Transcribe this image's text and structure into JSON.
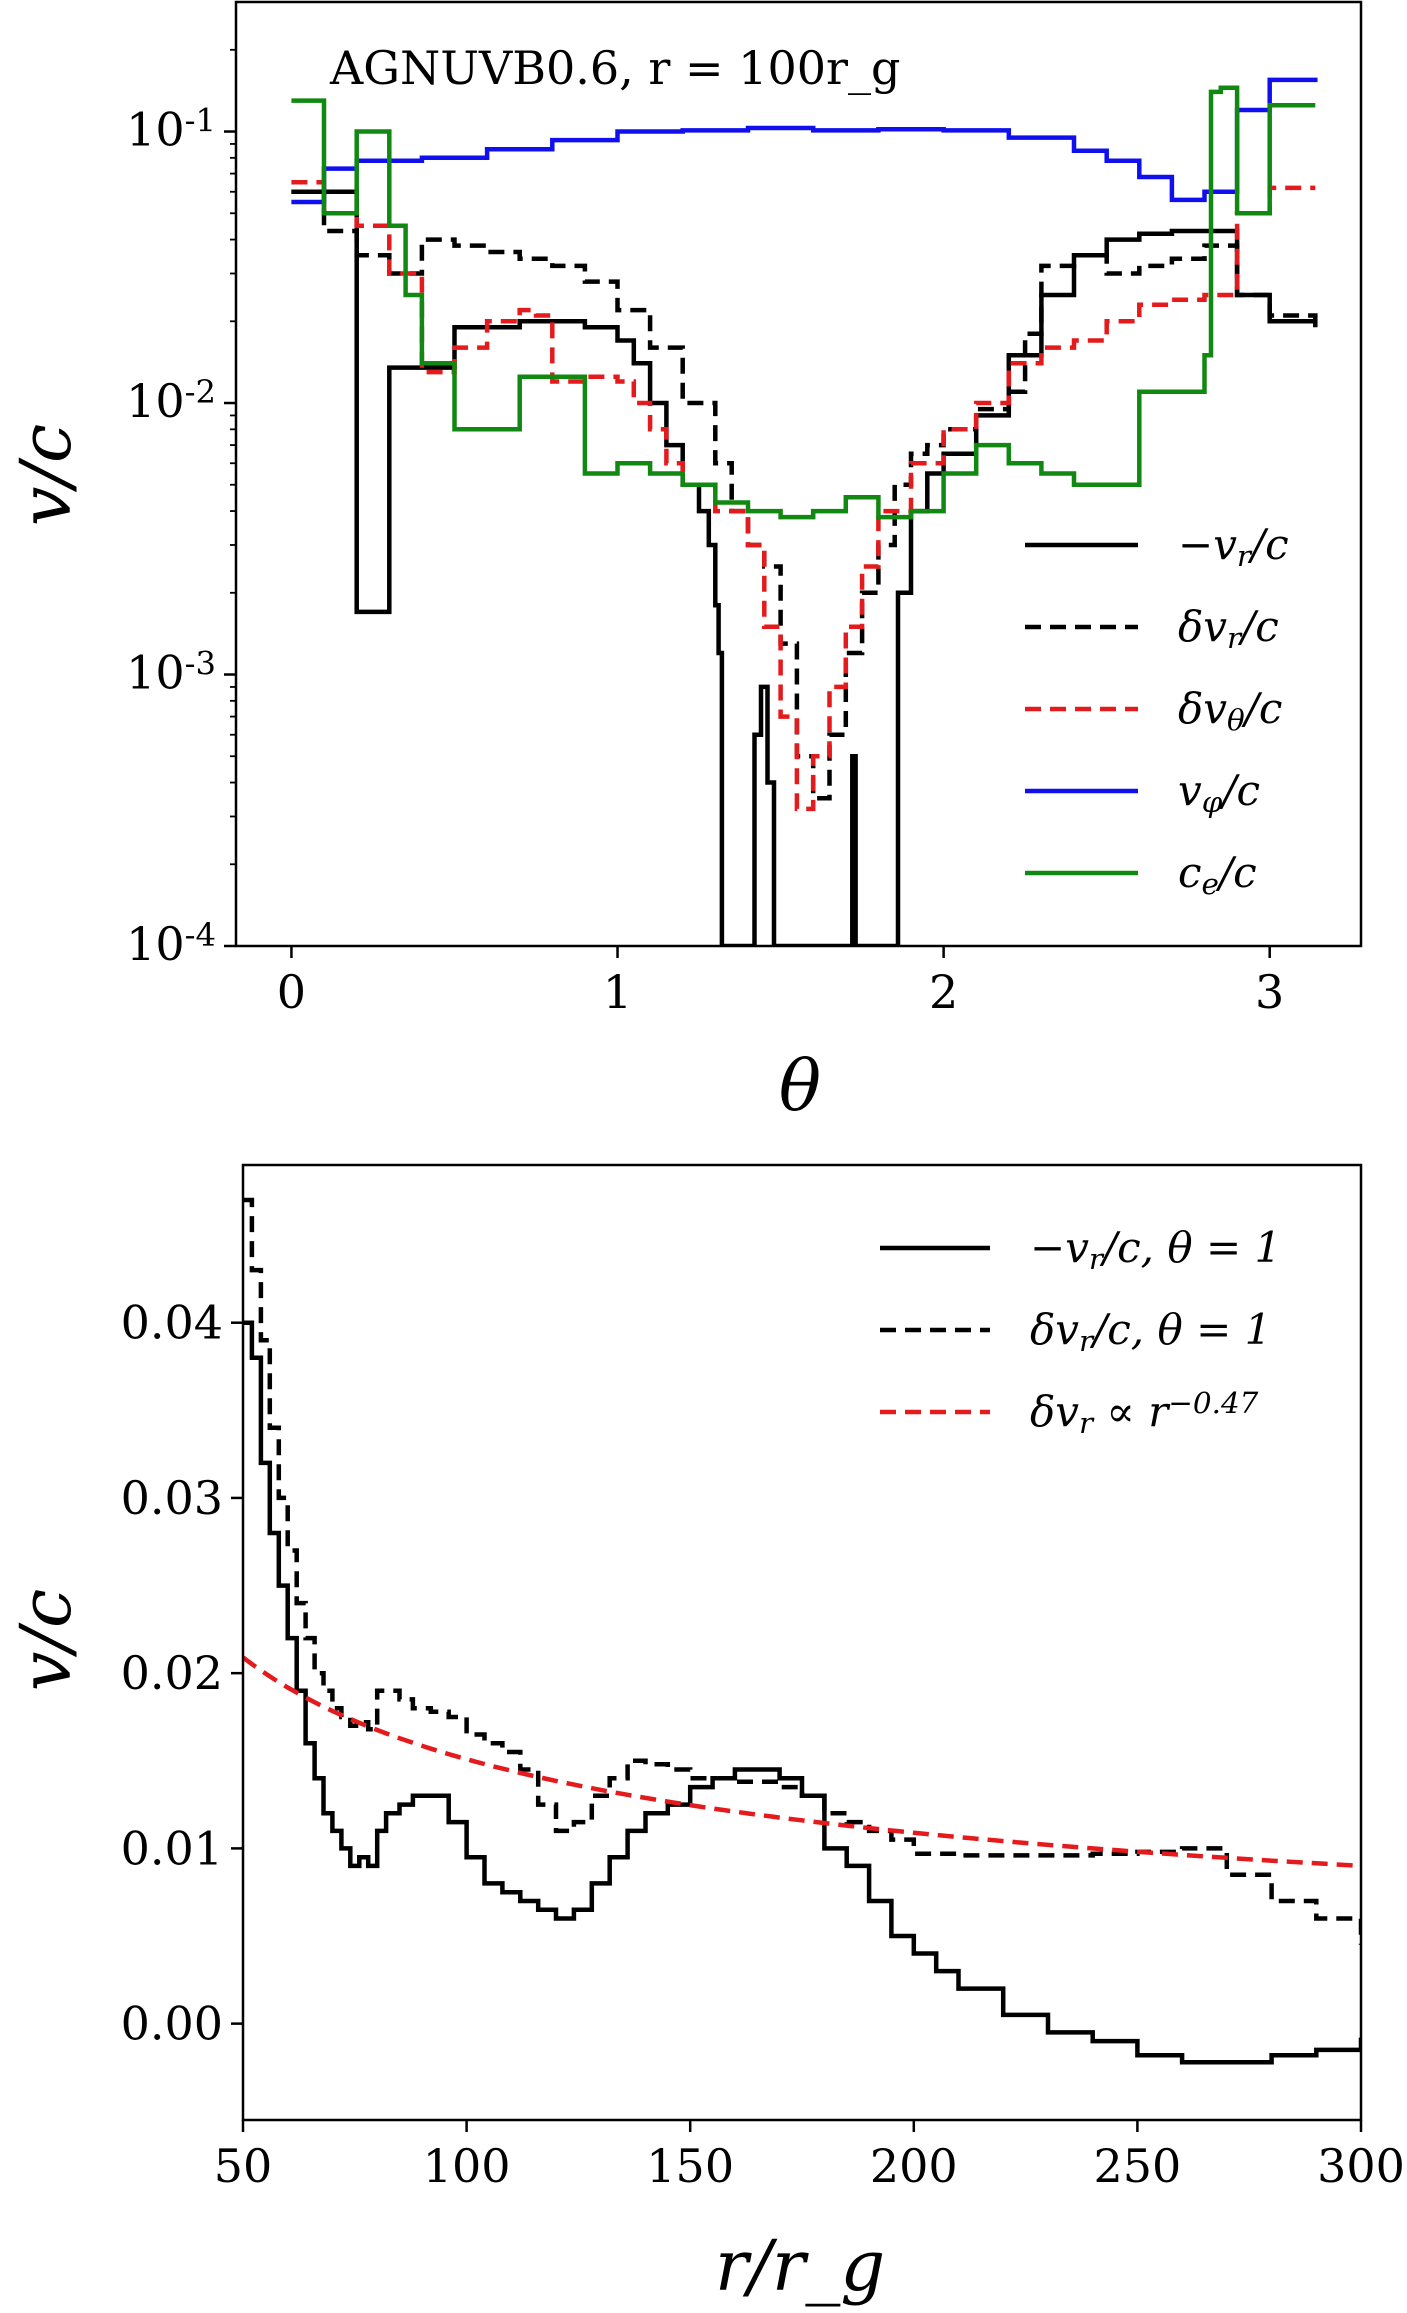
{
  "chart_data": [
    {
      "type": "line",
      "annotation": "AGNUVB0.6, r = 100r_g",
      "xlabel": "θ",
      "ylabel": "v/c",
      "xscale": "linear",
      "yscale": "log",
      "xlim": [
        -0.17,
        3.28
      ],
      "ylim": [
        0.0001,
        0.3
      ],
      "xticks": [
        0,
        1,
        2,
        3
      ],
      "xtick_labels": [
        "0",
        "1",
        "2",
        "3"
      ],
      "yticks": [
        0.0001,
        0.001,
        0.01,
        0.1
      ],
      "ytick_labels": [
        "10^{-4}",
        "10^{-3}",
        "10^{-2}",
        "10^{-1}"
      ],
      "grid": false,
      "legend_position": "center-right",
      "series": [
        {
          "name": "−v_r/c",
          "color": "#000000",
          "dash": "solid",
          "x": [
            0.0,
            0.1,
            0.18,
            0.2,
            0.28,
            0.3,
            0.5,
            0.7,
            0.8,
            0.9,
            1.0,
            1.05,
            1.1,
            1.15,
            1.2,
            1.25,
            1.28,
            1.3,
            1.31,
            1.32,
            1.4,
            1.42,
            1.44,
            1.46,
            1.48,
            1.5,
            1.6,
            1.7,
            1.72,
            1.73,
            1.74,
            1.76,
            1.8,
            1.84,
            1.86,
            1.9,
            1.95,
            2.0,
            2.1,
            2.2,
            2.3,
            2.4,
            2.5,
            2.6,
            2.7,
            2.8,
            2.85,
            2.9,
            3.0,
            3.14
          ],
          "y": [
            0.06,
            0.06,
            0.06,
            0.0017,
            0.0017,
            0.0135,
            0.019,
            0.02,
            0.02,
            0.019,
            0.017,
            0.014,
            0.01,
            0.007,
            0.005,
            0.004,
            0.003,
            0.0018,
            0.0012,
            0.0001,
            0.0001,
            0.0006,
            0.0009,
            0.0004,
            0.0001,
            0.0001,
            0.0001,
            0.0001,
            0.0005,
            0.0001,
            0.0001,
            0.0001,
            0.0001,
            0.0001,
            0.002,
            0.004,
            0.0055,
            0.0065,
            0.009,
            0.015,
            0.025,
            0.035,
            0.04,
            0.042,
            0.043,
            0.043,
            0.043,
            0.025,
            0.02,
            0.019
          ]
        },
        {
          "name": "δv_r/c",
          "color": "#000000",
          "dash": "dashed",
          "x": [
            0.0,
            0.1,
            0.2,
            0.3,
            0.4,
            0.5,
            0.6,
            0.7,
            0.8,
            0.9,
            1.0,
            1.1,
            1.2,
            1.3,
            1.35,
            1.4,
            1.45,
            1.5,
            1.55,
            1.6,
            1.65,
            1.7,
            1.75,
            1.8,
            1.85,
            1.9,
            1.95,
            2.0,
            2.1,
            2.2,
            2.25,
            2.3,
            2.4,
            2.5,
            2.6,
            2.7,
            2.8,
            2.9,
            3.0,
            3.14
          ],
          "y": [
            0.06,
            0.043,
            0.035,
            0.03,
            0.04,
            0.038,
            0.036,
            0.034,
            0.032,
            0.028,
            0.022,
            0.016,
            0.01,
            0.006,
            0.004,
            0.003,
            0.0025,
            0.0013,
            0.0005,
            0.00035,
            0.0006,
            0.0012,
            0.002,
            0.003,
            0.005,
            0.0065,
            0.007,
            0.008,
            0.0095,
            0.011,
            0.018,
            0.032,
            0.035,
            0.03,
            0.032,
            0.034,
            0.038,
            0.025,
            0.021,
            0.02
          ]
        },
        {
          "name": "δv_θ/c",
          "color": "#e41a1c",
          "dash": "dashed",
          "x": [
            0.0,
            0.1,
            0.2,
            0.3,
            0.4,
            0.5,
            0.6,
            0.7,
            0.75,
            0.8,
            0.9,
            1.0,
            1.05,
            1.1,
            1.15,
            1.2,
            1.3,
            1.4,
            1.45,
            1.5,
            1.55,
            1.6,
            1.65,
            1.7,
            1.75,
            1.8,
            1.9,
            2.0,
            2.1,
            2.2,
            2.3,
            2.4,
            2.5,
            2.6,
            2.7,
            2.8,
            2.9,
            3.0,
            3.14
          ],
          "y": [
            0.065,
            0.05,
            0.045,
            0.03,
            0.013,
            0.016,
            0.02,
            0.022,
            0.021,
            0.012,
            0.0125,
            0.012,
            0.01,
            0.008,
            0.006,
            0.005,
            0.004,
            0.003,
            0.0015,
            0.0007,
            0.00032,
            0.0005,
            0.0009,
            0.0015,
            0.0025,
            0.004,
            0.006,
            0.008,
            0.01,
            0.014,
            0.016,
            0.017,
            0.02,
            0.023,
            0.024,
            0.025,
            0.05,
            0.062,
            0.062
          ]
        },
        {
          "name": "v_φ/c",
          "color": "#1010ee",
          "dash": "solid",
          "x": [
            0.0,
            0.1,
            0.2,
            0.4,
            0.6,
            0.8,
            1.0,
            1.2,
            1.4,
            1.6,
            1.8,
            2.0,
            2.2,
            2.4,
            2.5,
            2.6,
            2.7,
            2.8,
            2.9,
            3.0,
            3.14
          ],
          "y": [
            0.055,
            0.073,
            0.078,
            0.08,
            0.086,
            0.093,
            0.1,
            0.101,
            0.103,
            0.101,
            0.102,
            0.101,
            0.095,
            0.085,
            0.078,
            0.068,
            0.056,
            0.06,
            0.12,
            0.155,
            0.158
          ]
        },
        {
          "name": "c_e/c",
          "color": "#118811",
          "dash": "solid",
          "x": [
            0.0,
            0.1,
            0.15,
            0.2,
            0.3,
            0.35,
            0.4,
            0.45,
            0.5,
            0.6,
            0.7,
            0.8,
            0.9,
            1.0,
            1.1,
            1.2,
            1.3,
            1.4,
            1.5,
            1.6,
            1.7,
            1.8,
            1.9,
            2.0,
            2.1,
            2.2,
            2.3,
            2.4,
            2.5,
            2.6,
            2.7,
            2.8,
            2.82,
            2.85,
            2.9,
            2.95,
            3.0,
            3.14
          ],
          "y": [
            0.13,
            0.05,
            0.05,
            0.1,
            0.045,
            0.025,
            0.014,
            0.014,
            0.008,
            0.008,
            0.0125,
            0.0125,
            0.0055,
            0.006,
            0.0055,
            0.005,
            0.0043,
            0.004,
            0.0038,
            0.004,
            0.0045,
            0.0038,
            0.004,
            0.0055,
            0.007,
            0.006,
            0.0055,
            0.005,
            0.005,
            0.011,
            0.011,
            0.015,
            0.14,
            0.145,
            0.05,
            0.05,
            0.125,
            0.125
          ]
        }
      ]
    },
    {
      "type": "line",
      "xlabel": "r/r_g",
      "ylabel": "v/c",
      "xlim": [
        50,
        300
      ],
      "ylim": [
        -0.0055,
        0.049
      ],
      "xticks": [
        50,
        100,
        150,
        200,
        250,
        300
      ],
      "xtick_labels": [
        "50",
        "100",
        "150",
        "200",
        "250",
        "300"
      ],
      "yticks": [
        0.0,
        0.01,
        0.02,
        0.03,
        0.04
      ],
      "ytick_labels": [
        "0.00",
        "0.01",
        "0.02",
        "0.03",
        "0.04"
      ],
      "grid": false,
      "legend_position": "top-right",
      "series": [
        {
          "name": "−v_r/c, θ = 1",
          "color": "#000000",
          "dash": "solid",
          "x": [
            50,
            52,
            54,
            56,
            58,
            60,
            62,
            64,
            66,
            68,
            70,
            72,
            74,
            76,
            78,
            80,
            82,
            85,
            88,
            92,
            96,
            100,
            104,
            108,
            112,
            116,
            120,
            124,
            128,
            132,
            136,
            140,
            145,
            150,
            155,
            160,
            165,
            170,
            175,
            180,
            185,
            190,
            195,
            200,
            205,
            210,
            220,
            230,
            240,
            250,
            260,
            270,
            280,
            290,
            300
          ],
          "y": [
            0.04,
            0.038,
            0.032,
            0.028,
            0.025,
            0.022,
            0.019,
            0.016,
            0.014,
            0.012,
            0.011,
            0.01,
            0.009,
            0.0095,
            0.009,
            0.011,
            0.012,
            0.0125,
            0.013,
            0.013,
            0.0115,
            0.0095,
            0.008,
            0.0075,
            0.007,
            0.0065,
            0.006,
            0.0065,
            0.008,
            0.0095,
            0.011,
            0.012,
            0.0125,
            0.0135,
            0.014,
            0.0145,
            0.0145,
            0.014,
            0.013,
            0.01,
            0.009,
            0.007,
            0.005,
            0.004,
            0.003,
            0.002,
            0.0005,
            -0.0005,
            -0.001,
            -0.0018,
            -0.0022,
            -0.0022,
            -0.0018,
            -0.0015,
            -0.0008
          ]
        },
        {
          "name": "δv_r/c, θ = 1",
          "color": "#000000",
          "dash": "dashed",
          "x": [
            50,
            52,
            54,
            56,
            58,
            60,
            62,
            64,
            66,
            68,
            70,
            72,
            74,
            76,
            78,
            80,
            82,
            85,
            88,
            92,
            96,
            100,
            104,
            108,
            112,
            116,
            120,
            124,
            128,
            132,
            136,
            140,
            145,
            150,
            155,
            160,
            165,
            170,
            175,
            180,
            185,
            190,
            195,
            200,
            210,
            220,
            230,
            240,
            250,
            260,
            270,
            280,
            290,
            300
          ],
          "y": [
            0.047,
            0.043,
            0.039,
            0.034,
            0.03,
            0.027,
            0.024,
            0.022,
            0.02,
            0.019,
            0.018,
            0.0175,
            0.017,
            0.0172,
            0.0168,
            0.019,
            0.019,
            0.0185,
            0.018,
            0.0178,
            0.0175,
            0.0165,
            0.016,
            0.0155,
            0.0145,
            0.0125,
            0.011,
            0.0115,
            0.013,
            0.014,
            0.015,
            0.0148,
            0.0145,
            0.014,
            0.014,
            0.0138,
            0.0138,
            0.0135,
            0.013,
            0.012,
            0.0115,
            0.011,
            0.0105,
            0.0097,
            0.0096,
            0.0096,
            0.0096,
            0.0097,
            0.0098,
            0.01,
            0.0085,
            0.007,
            0.006,
            0.0045
          ]
        },
        {
          "name": "δv_r ∝ r^{−0.47}",
          "color": "#e41a1c",
          "dash": "dashed",
          "function": "power",
          "amplitude": 0.0209,
          "reference_r": 50,
          "exponent": -0.47
        }
      ]
    }
  ]
}
